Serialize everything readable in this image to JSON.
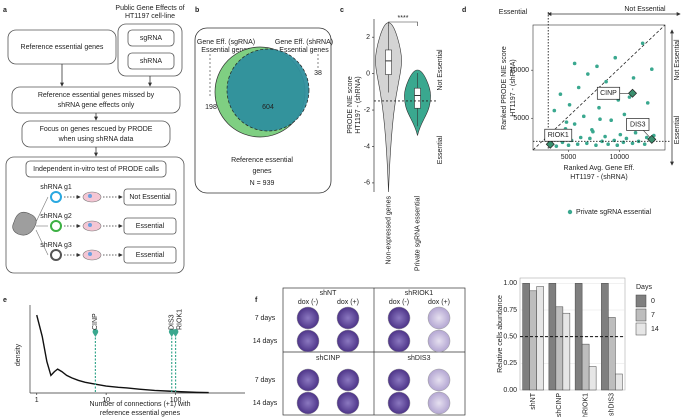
{
  "panel_labels": [
    "a",
    "b",
    "c",
    "d",
    "e",
    "f"
  ],
  "diagram_a": {
    "reference_box": "Reference essential genes",
    "public_title": [
      "Public Gene Effects of",
      "HT1197 cell-line"
    ],
    "sgrna": "sgRNA",
    "shrna": "shRNA",
    "missed_box": [
      "Reference essential genes missed by",
      "shRNA gene effects only"
    ],
    "focus_box": [
      "Focus on genes rescued by PRODE",
      "when using shRNA data"
    ],
    "test_title": "Independent in-vitro test of PRODE calls",
    "rows": [
      {
        "guide": "shRNA g1",
        "result": "Not Essential"
      },
      {
        "guide": "shRNA g2",
        "result": "Essential"
      },
      {
        "guide": "shRNA g3",
        "result": "Essential"
      }
    ]
  },
  "venn_b": {
    "left_label": [
      "Gene Eff. (sgRNA)",
      "Essential genes"
    ],
    "right_label": [
      "Gene Eff. (shRNA)",
      "Essential genes"
    ],
    "left_only": 198,
    "both": 604,
    "right_only": 38,
    "caption": [
      "Reference essential",
      "genes"
    ],
    "n": "N = 939"
  },
  "photos_f": {
    "top_groups": [
      "shNT",
      "shRIOK1"
    ],
    "bottom_groups": [
      "shCINP",
      "shDIS3"
    ],
    "dox": [
      "dox (-)",
      "dox (+)"
    ],
    "days": [
      "7 days",
      "14 days"
    ]
  },
  "chart_data": [
    {
      "type": "violin",
      "ylabel": [
        "PRODE NIE score",
        "HT1197 - (shRNA)"
      ],
      "categories": [
        "Non-expressed genes",
        "Private sgRNA essential"
      ],
      "boxes": [
        {
          "min": -6.5,
          "q1": -0.05,
          "median": 0.7,
          "q3": 1.3,
          "max": 2.8,
          "color": "#d4d4d4"
        },
        {
          "min": -3.4,
          "q1": -1.9,
          "median": -1.2,
          "q3": -0.8,
          "max": 0.2,
          "color": "#3aa88f"
        }
      ],
      "threshold": -1.5,
      "significance": "****",
      "side_labels": [
        "Not Essential",
        "Essential"
      ],
      "ylim": [
        -6.5,
        3
      ],
      "yticks": [
        2,
        0,
        -2,
        -4,
        -6
      ]
    },
    {
      "type": "scatter",
      "top_labels": [
        "Essential",
        "Not Essential"
      ],
      "side_labels": [
        "Not Essential",
        "Essential"
      ],
      "xlabel": [
        "Ranked Avg. Gene Eff.",
        "HT1197 - (shRNA)"
      ],
      "ylabel": [
        "Ranked PRODE NIE score",
        "HT1197 - (shRNA)"
      ],
      "x": [
        3200,
        3500,
        3800,
        4100,
        4400,
        4700,
        5000,
        5300,
        5600,
        5900,
        6200,
        6500,
        6800,
        7100,
        7400,
        7700,
        8000,
        8300,
        8600,
        8900,
        9200,
        9500,
        9800,
        10100,
        10400,
        10700,
        11000,
        11300,
        11600,
        11900,
        12200,
        12500,
        12800,
        13100,
        13400,
        3600,
        4200,
        5100,
        6000,
        6900,
        7800,
        8700,
        9600,
        10500,
        11400,
        12300,
        13200,
        4800,
        7300,
        9900,
        12700,
        5600,
        8100
      ],
      "values": [
        2300,
        2800,
        2100,
        3200,
        2500,
        3900,
        2200,
        2700,
        4400,
        2300,
        3000,
        5200,
        2400,
        2900,
        3600,
        2200,
        6100,
        2600,
        3100,
        2300,
        4800,
        2700,
        2200,
        3300,
        2500,
        2900,
        7200,
        2400,
        3500,
        2600,
        4100,
        2300,
        6600,
        2800,
        3200,
        5800,
        7500,
        6400,
        8200,
        9600,
        10400,
        8800,
        11300,
        5400,
        9200,
        12800,
        10100,
        4600,
        3800,
        6900,
        3000,
        10700,
        4900
      ],
      "color": "#3aa88f",
      "highlights": [
        {
          "label": "CINP",
          "x": 11300,
          "y": 7600
        },
        {
          "label": "DIS3",
          "x": 13200,
          "y": 2800
        },
        {
          "label": "RIOK1",
          "x": 3200,
          "y": 2300
        }
      ],
      "xthreshold": 3000,
      "ythreshold": 2600,
      "legend": "Private sgRNA essential",
      "xlim": [
        1500,
        14500
      ],
      "ylim": [
        1700,
        14700
      ],
      "xticks": [
        5000,
        10000
      ],
      "yticks": [
        5000,
        10000
      ]
    },
    {
      "type": "line",
      "xlabel": [
        "Number of connections (+1) with",
        "reference essential genes"
      ],
      "ylabel": "density",
      "x": [
        1,
        1.2,
        1.4,
        1.6,
        1.8,
        2,
        2.3,
        2.7,
        3.2,
        4,
        5,
        7,
        10,
        15,
        20,
        30,
        50,
        80,
        120,
        200,
        300
      ],
      "values": [
        0.62,
        0.45,
        0.25,
        0.14,
        0.17,
        0.19,
        0.17,
        0.14,
        0.12,
        0.1,
        0.085,
        0.07,
        0.055,
        0.045,
        0.04,
        0.03,
        0.02,
        0.015,
        0.01,
        0.005,
        0.003
      ],
      "color": "#111111",
      "log_x": true,
      "annotations": [
        {
          "label": "CINP",
          "x": 7
        },
        {
          "label": "DIS3",
          "x": 88
        },
        {
          "label": "RIOK1",
          "x": 100
        }
      ],
      "annotation_color": "#3aa88f",
      "xlim": [
        0.8,
        1000
      ],
      "ylim": [
        0,
        0.7
      ],
      "xticks": [
        1,
        10,
        100
      ]
    },
    {
      "type": "bar",
      "ylabel": "Relative cells abundance",
      "categories": [
        "shNT",
        "shCINP",
        "shRIOK1",
        "shDIS3"
      ],
      "legend_title": "Days",
      "series": [
        {
          "name": "0",
          "color": "#7f7f7f",
          "values": [
            1.0,
            1.0,
            1.0,
            1.0
          ]
        },
        {
          "name": "7",
          "color": "#bdbdbd",
          "values": [
            0.93,
            0.78,
            0.43,
            0.68
          ]
        },
        {
          "name": "14",
          "color": "#e6e6e6",
          "values": [
            0.97,
            0.72,
            0.22,
            0.15
          ]
        }
      ],
      "reference": 0.5,
      "ylim": [
        0,
        1.05
      ],
      "yticks": [
        {
          "value": 0,
          "label": "0.00"
        },
        {
          "value": 0.25,
          "label": "0.25"
        },
        {
          "value": 0.5,
          "label": "0.50"
        },
        {
          "value": 0.75,
          "label": "0.75"
        },
        {
          "value": 1,
          "label": "1.00"
        }
      ]
    }
  ]
}
